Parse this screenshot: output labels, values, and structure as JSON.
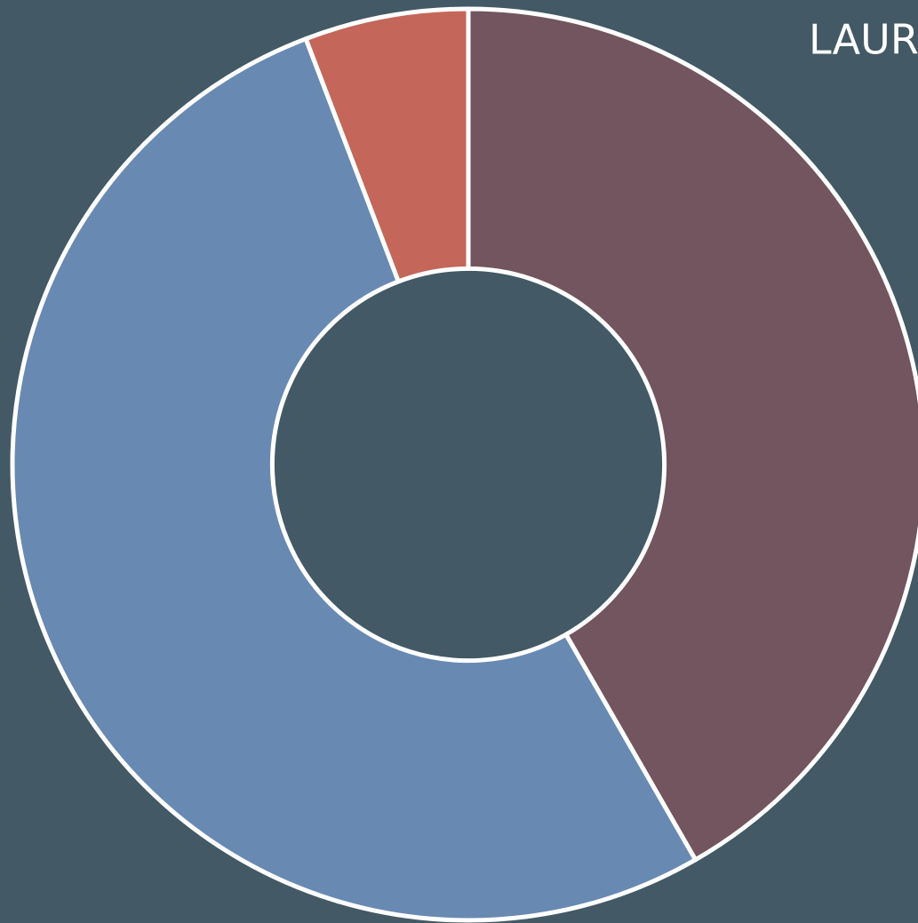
{
  "chart_data": {
    "type": "pie",
    "title": "LAUR",
    "categories": [
      null,
      null,
      null
    ],
    "values": [
      41.7,
      52.5,
      5.8
    ],
    "colors": [
      "#72555e",
      "#6889b2",
      "#c4665a"
    ],
    "inner_radius_ratio": 0.43,
    "background": "#435965"
  }
}
